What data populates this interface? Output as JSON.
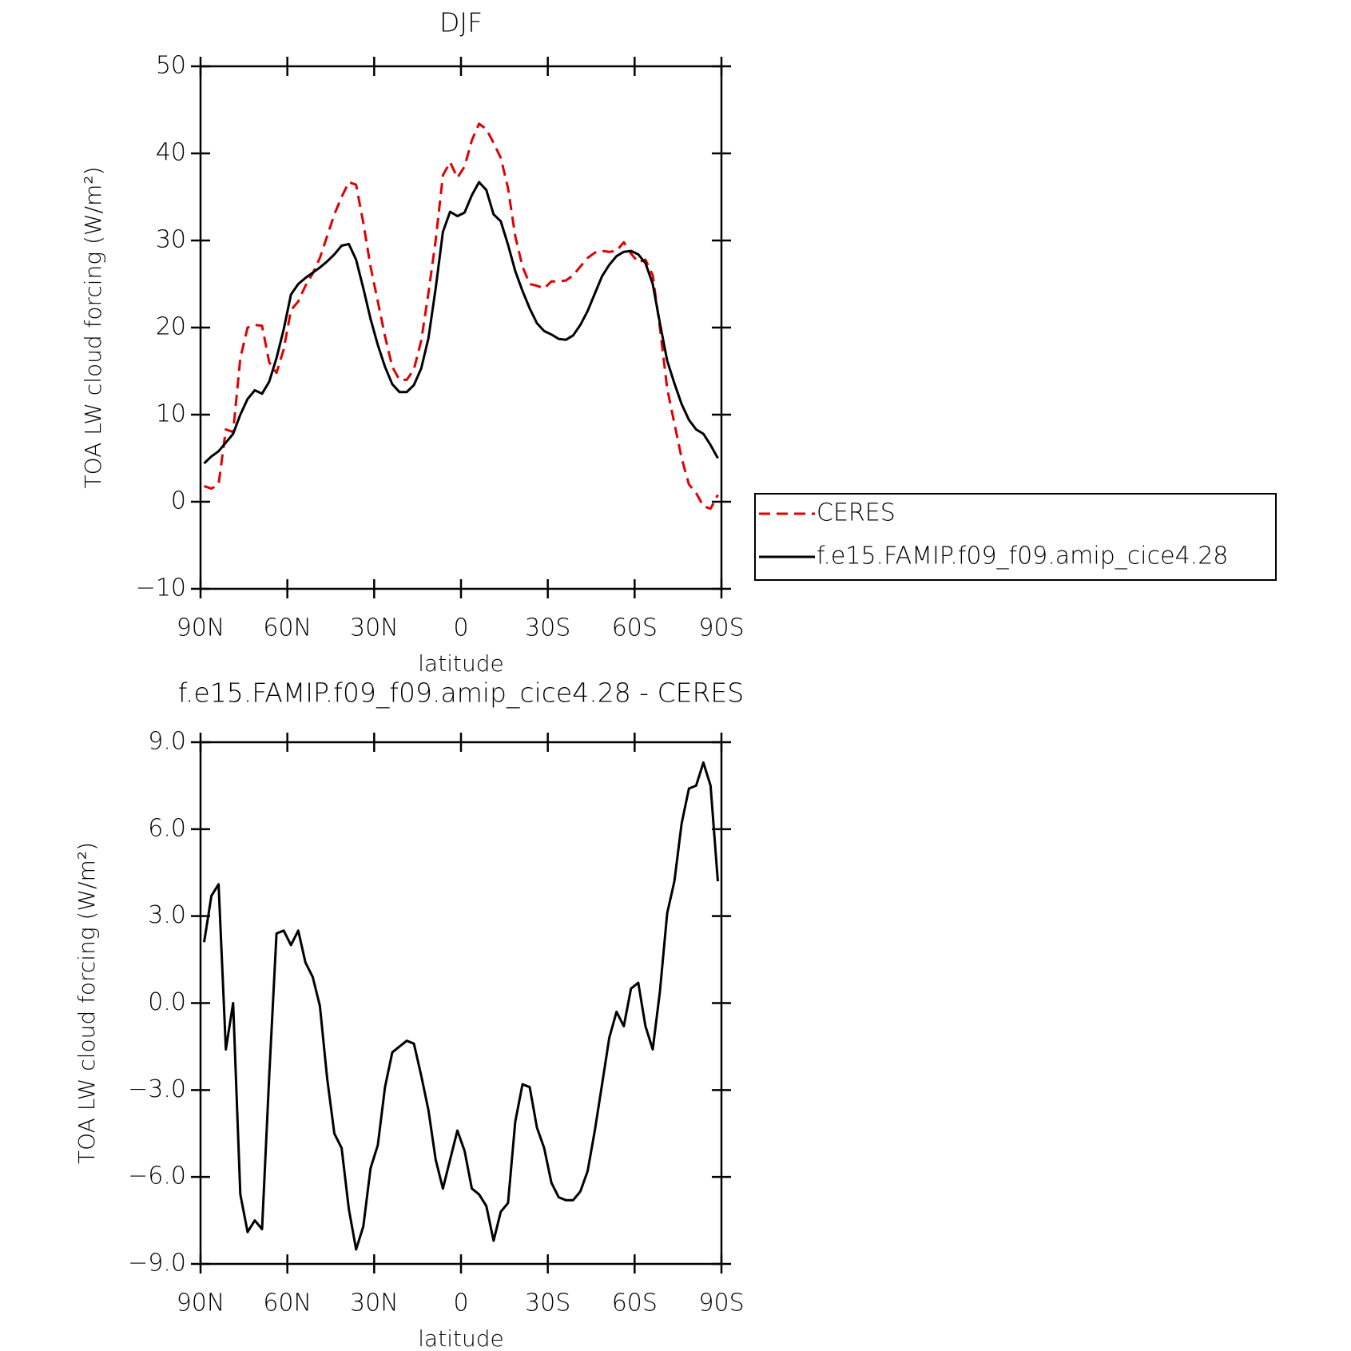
{
  "chart_data": [
    {
      "type": "line",
      "title": "DJF",
      "xlabel": "latitude",
      "ylabel": "TOA LW cloud forcing (W/m²)",
      "xlim": [
        90,
        -90
      ],
      "xticks": [
        {
          "value": 90,
          "label": "90N"
        },
        {
          "value": 60,
          "label": "60N"
        },
        {
          "value": 30,
          "label": "30N"
        },
        0,
        {
          "value": -30,
          "label": "30S"
        },
        {
          "value": -60,
          "label": "60S"
        },
        {
          "value": -90,
          "label": "90S"
        }
      ],
      "ylim": [
        -10,
        50
      ],
      "yticks": [
        {
          "value": -10,
          "label": "−10"
        },
        0,
        10,
        20,
        30,
        40,
        50
      ],
      "legend": "right",
      "x": [
        88.75,
        86.25,
        83.75,
        81.25,
        78.75,
        76.25,
        73.75,
        71.25,
        68.75,
        66.25,
        63.75,
        61.25,
        58.75,
        56.25,
        53.75,
        51.25,
        48.75,
        46.25,
        43.75,
        41.25,
        38.75,
        36.25,
        33.75,
        31.25,
        28.75,
        26.25,
        23.75,
        21.25,
        18.75,
        16.25,
        13.75,
        11.25,
        8.75,
        6.25,
        3.75,
        1.25,
        -1.25,
        -3.75,
        -6.25,
        -8.75,
        -11.25,
        -13.75,
        -16.25,
        -18.75,
        -21.25,
        -23.75,
        -26.25,
        -28.75,
        -31.25,
        -33.75,
        -36.25,
        -38.75,
        -41.25,
        -43.75,
        -46.25,
        -48.75,
        -51.25,
        -53.75,
        -56.25,
        -58.75,
        -61.25,
        -63.75,
        -66.25,
        -68.75,
        -71.25,
        -73.75,
        -76.25,
        -78.75,
        -81.25,
        -83.75,
        -86.25,
        -88.75
      ],
      "series": [
        {
          "name": "CERES",
          "color": "#e00000",
          "dash": true,
          "values": [
            1.8,
            1.5,
            2,
            8.3,
            8,
            16.5,
            20,
            20.3,
            20.2,
            16,
            14.8,
            17.5,
            22,
            23,
            24.8,
            26.2,
            28,
            30.5,
            33,
            35,
            36.7,
            36.4,
            32,
            27,
            23,
            19,
            15.5,
            14,
            14,
            15.2,
            18.5,
            24,
            30,
            37.5,
            39,
            37.2,
            38.5,
            41.5,
            43.4,
            42.8,
            41.2,
            39.5,
            36,
            30.5,
            27,
            25,
            24.8,
            24.5,
            25.3,
            25.3,
            25.4,
            26,
            27,
            28,
            28.6,
            28.8,
            28.7,
            28.8,
            29.8,
            28.5,
            27.5,
            27.8,
            26,
            20,
            13,
            9,
            5,
            2,
            1,
            -0.5,
            -0.8,
            0.8
          ]
        },
        {
          "name": "f.e15.FAMIP.f09_f09.amip_cice4.28",
          "color": "#000000",
          "dash": false,
          "values": [
            4.4,
            5.2,
            5.8,
            6.8,
            7.8,
            10,
            11.8,
            12.8,
            12.4,
            13.8,
            16.5,
            19.8,
            23.8,
            25,
            25.7,
            26.3,
            26.9,
            27.6,
            28.4,
            29.4,
            29.6,
            27.8,
            24.5,
            21,
            18,
            15.5,
            13.5,
            12.6,
            12.6,
            13.4,
            15.3,
            18.8,
            24.5,
            31,
            33.3,
            32.8,
            33.2,
            35.2,
            36.7,
            35.8,
            33,
            32.2,
            29.5,
            26.5,
            24.2,
            22.2,
            20.5,
            19.6,
            19.2,
            18.7,
            18.6,
            19.1,
            20.3,
            21.9,
            23.9,
            25.9,
            27.2,
            28.2,
            28.7,
            28.8,
            28.4,
            27.4,
            25,
            20.5,
            16.2,
            13.6,
            11.2,
            9.4,
            8.3,
            7.8,
            6.5,
            5
          ]
        }
      ]
    },
    {
      "type": "line",
      "title": "f.e15.FAMIP.f09_f09.amip_cice4.28 - CERES",
      "xlabel": "latitude",
      "ylabel": "TOA LW cloud forcing (W/m²)",
      "xlim": [
        90,
        -90
      ],
      "xticks": [
        {
          "value": 90,
          "label": "90N"
        },
        {
          "value": 60,
          "label": "60N"
        },
        {
          "value": 30,
          "label": "30N"
        },
        0,
        {
          "value": -30,
          "label": "30S"
        },
        {
          "value": -60,
          "label": "60S"
        },
        {
          "value": -90,
          "label": "90S"
        }
      ],
      "ylim": [
        -9,
        9
      ],
      "yticks": [
        {
          "value": -9,
          "label": "−9.0"
        },
        {
          "value": -6,
          "label": "−6.0"
        },
        {
          "value": -3,
          "label": "−3.0"
        },
        {
          "value": 0,
          "label": "0.0"
        },
        {
          "value": 3,
          "label": "3.0"
        },
        {
          "value": 6,
          "label": "6.0"
        },
        {
          "value": 9,
          "label": "9.0"
        }
      ],
      "x": [
        88.75,
        86.25,
        83.75,
        81.25,
        78.75,
        76.25,
        73.75,
        71.25,
        68.75,
        66.25,
        63.75,
        61.25,
        58.75,
        56.25,
        53.75,
        51.25,
        48.75,
        46.25,
        43.75,
        41.25,
        38.75,
        36.25,
        33.75,
        31.25,
        28.75,
        26.25,
        23.75,
        21.25,
        18.75,
        16.25,
        13.75,
        11.25,
        8.75,
        6.25,
        3.75,
        1.25,
        -1.25,
        -3.75,
        -6.25,
        -8.75,
        -11.25,
        -13.75,
        -16.25,
        -18.75,
        -21.25,
        -23.75,
        -26.25,
        -28.75,
        -31.25,
        -33.75,
        -36.25,
        -38.75,
        -41.25,
        -43.75,
        -46.25,
        -48.75,
        -51.25,
        -53.75,
        -56.25,
        -58.75,
        -61.25,
        -63.75,
        -66.25,
        -68.75,
        -71.25,
        -73.75,
        -76.25,
        -78.75,
        -81.25,
        -83.75,
        -86.25,
        -88.75
      ],
      "color": "#000000",
      "values": [
        2.1,
        3.7,
        4.1,
        -1.6,
        0,
        -6.6,
        -7.9,
        -7.5,
        -7.8,
        -2.5,
        2.4,
        2.5,
        2,
        2.5,
        1.4,
        0.9,
        -0.1,
        -2.6,
        -4.5,
        -5,
        -7.1,
        -8.5,
        -7.7,
        -5.7,
        -4.9,
        -2.9,
        -1.7,
        -1.5,
        -1.3,
        -1.4,
        -2.5,
        -3.7,
        -5.4,
        -6.4,
        -5.4,
        -4.4,
        -5.1,
        -6.4,
        -6.6,
        -7,
        -8.2,
        -7.2,
        -6.9,
        -4.1,
        -2.8,
        -2.9,
        -4.3,
        -5,
        -6.2,
        -6.7,
        -6.8,
        -6.8,
        -6.5,
        -5.8,
        -4.4,
        -2.8,
        -1.2,
        -0.3,
        -0.8,
        0.5,
        0.7,
        -0.8,
        -1.6,
        0.4,
        3.1,
        4.2,
        6.2,
        7.4,
        7.5,
        8.3,
        7.5,
        4.2
      ]
    }
  ]
}
